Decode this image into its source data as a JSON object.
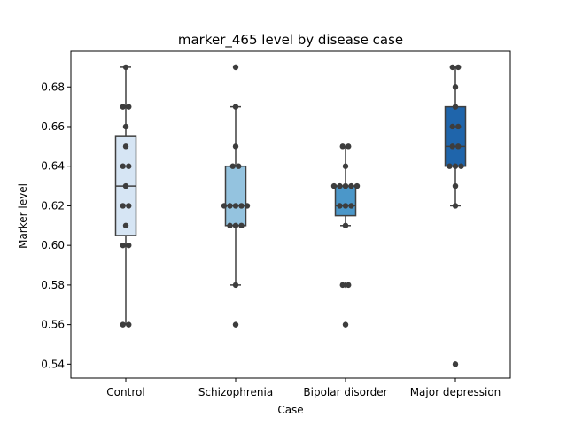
{
  "chart_data": {
    "type": "box",
    "title": "marker_465 level by disease case",
    "xlabel": "Case",
    "ylabel": "Marker level",
    "ylim": [
      0.533,
      0.698
    ],
    "yticks": [
      0.54,
      0.56,
      0.58,
      0.6,
      0.62,
      0.64,
      0.66,
      0.68
    ],
    "ytick_labels": [
      "0.54",
      "0.56",
      "0.58",
      "0.60",
      "0.62",
      "0.64",
      "0.66",
      "0.68"
    ],
    "grid": false,
    "categories": [
      "Control",
      "Schizophrenia",
      "Bipolar disorder",
      "Major depression"
    ],
    "colors": [
      "#d6e5f4",
      "#94c3df",
      "#4b97c9",
      "#1f65ab"
    ],
    "point_color": "#3d3d3d",
    "boxes": [
      {
        "category": "Control",
        "q1": 0.605,
        "median": 0.63,
        "q3": 0.655,
        "whisker_low": 0.56,
        "whisker_high": 0.69,
        "outliers": [],
        "points": [
          0.69,
          0.67,
          0.67,
          0.66,
          0.65,
          0.64,
          0.64,
          0.63,
          0.62,
          0.62,
          0.61,
          0.6,
          0.6,
          0.56,
          0.56
        ]
      },
      {
        "category": "Schizophrenia",
        "q1": 0.61,
        "median": 0.62,
        "q3": 0.64,
        "whisker_low": 0.58,
        "whisker_high": 0.67,
        "outliers": [
          0.69,
          0.56
        ],
        "points": [
          0.69,
          0.67,
          0.65,
          0.64,
          0.64,
          0.62,
          0.62,
          0.62,
          0.62,
          0.62,
          0.61,
          0.61,
          0.61,
          0.58,
          0.56
        ]
      },
      {
        "category": "Bipolar disorder",
        "q1": 0.615,
        "median": 0.62,
        "q3": 0.63,
        "whisker_low": 0.61,
        "whisker_high": 0.65,
        "outliers": [
          0.58,
          0.58,
          0.56
        ],
        "points": [
          0.65,
          0.65,
          0.64,
          0.63,
          0.63,
          0.63,
          0.63,
          0.63,
          0.62,
          0.62,
          0.62,
          0.61,
          0.58,
          0.58,
          0.56
        ]
      },
      {
        "category": "Major depression",
        "q1": 0.64,
        "median": 0.65,
        "q3": 0.67,
        "whisker_low": 0.62,
        "whisker_high": 0.69,
        "outliers": [
          0.54
        ],
        "points": [
          0.69,
          0.69,
          0.68,
          0.67,
          0.66,
          0.66,
          0.65,
          0.65,
          0.64,
          0.64,
          0.64,
          0.63,
          0.62,
          0.54
        ]
      }
    ]
  }
}
